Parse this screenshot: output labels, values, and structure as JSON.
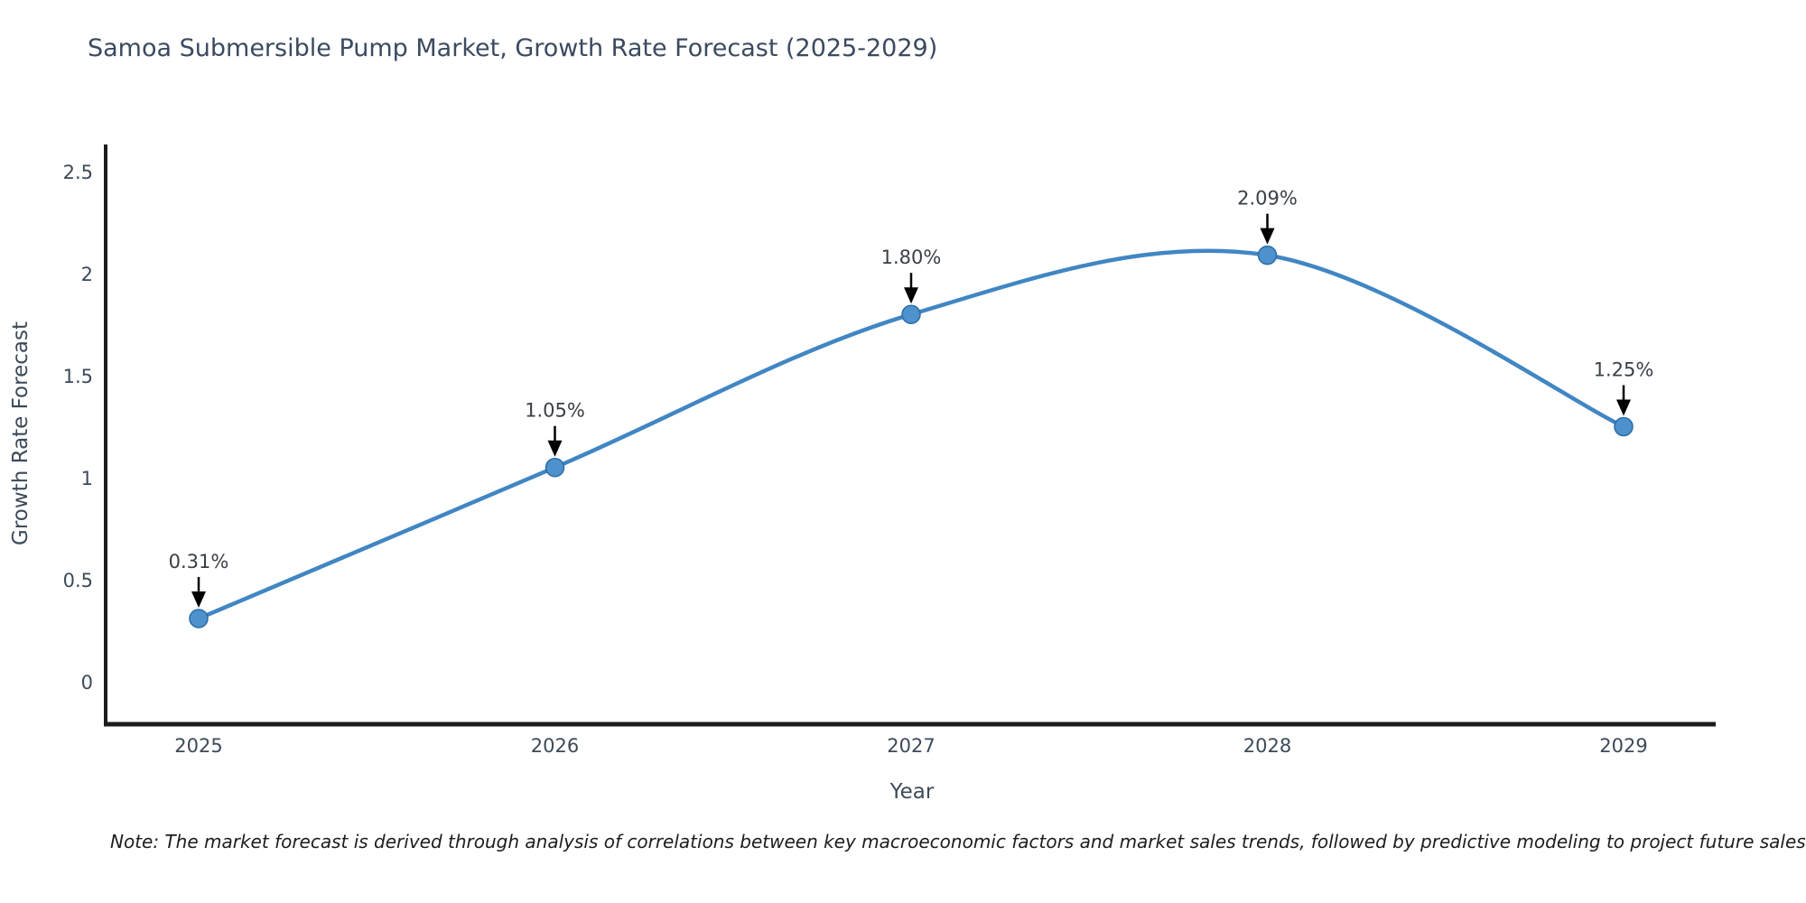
{
  "title": "Samoa Submersible Pump Market, Growth Rate Forecast (2025-2029)",
  "note": "Note: The market forecast is derived through analysis of correlations between key macroeconomic factors and market sales trends, followed by predictive modeling to project future sales",
  "chart_data": {
    "type": "line",
    "title": "Samoa Submersible Pump Market, Growth Rate Forecast (2025-2029)",
    "xlabel": "Year",
    "ylabel": "Growth Rate Forecast",
    "x": [
      2025,
      2026,
      2027,
      2028,
      2029
    ],
    "xtick_labels": [
      "2025",
      "2026",
      "2027",
      "2028",
      "2029"
    ],
    "values": [
      0.31,
      1.05,
      1.8,
      2.09,
      1.25
    ],
    "point_labels": [
      "0.31%",
      "1.05%",
      "1.80%",
      "2.09%",
      "1.25%"
    ],
    "ylim": [
      0,
      2.5
    ],
    "yticks": [
      0,
      0.5,
      1,
      1.5,
      2,
      2.5
    ],
    "ytick_labels": [
      "0",
      "0.5",
      "1",
      "1.5",
      "2",
      "2.5"
    ],
    "grid": false,
    "legend_position": "none",
    "curve": "spline",
    "colors": {
      "line": "#4186c3",
      "marker_fill": "#4d92cc",
      "marker_stroke": "#2c6ca6",
      "axis": "#1c1c1c",
      "annotation_arrow": "#000000"
    }
  }
}
